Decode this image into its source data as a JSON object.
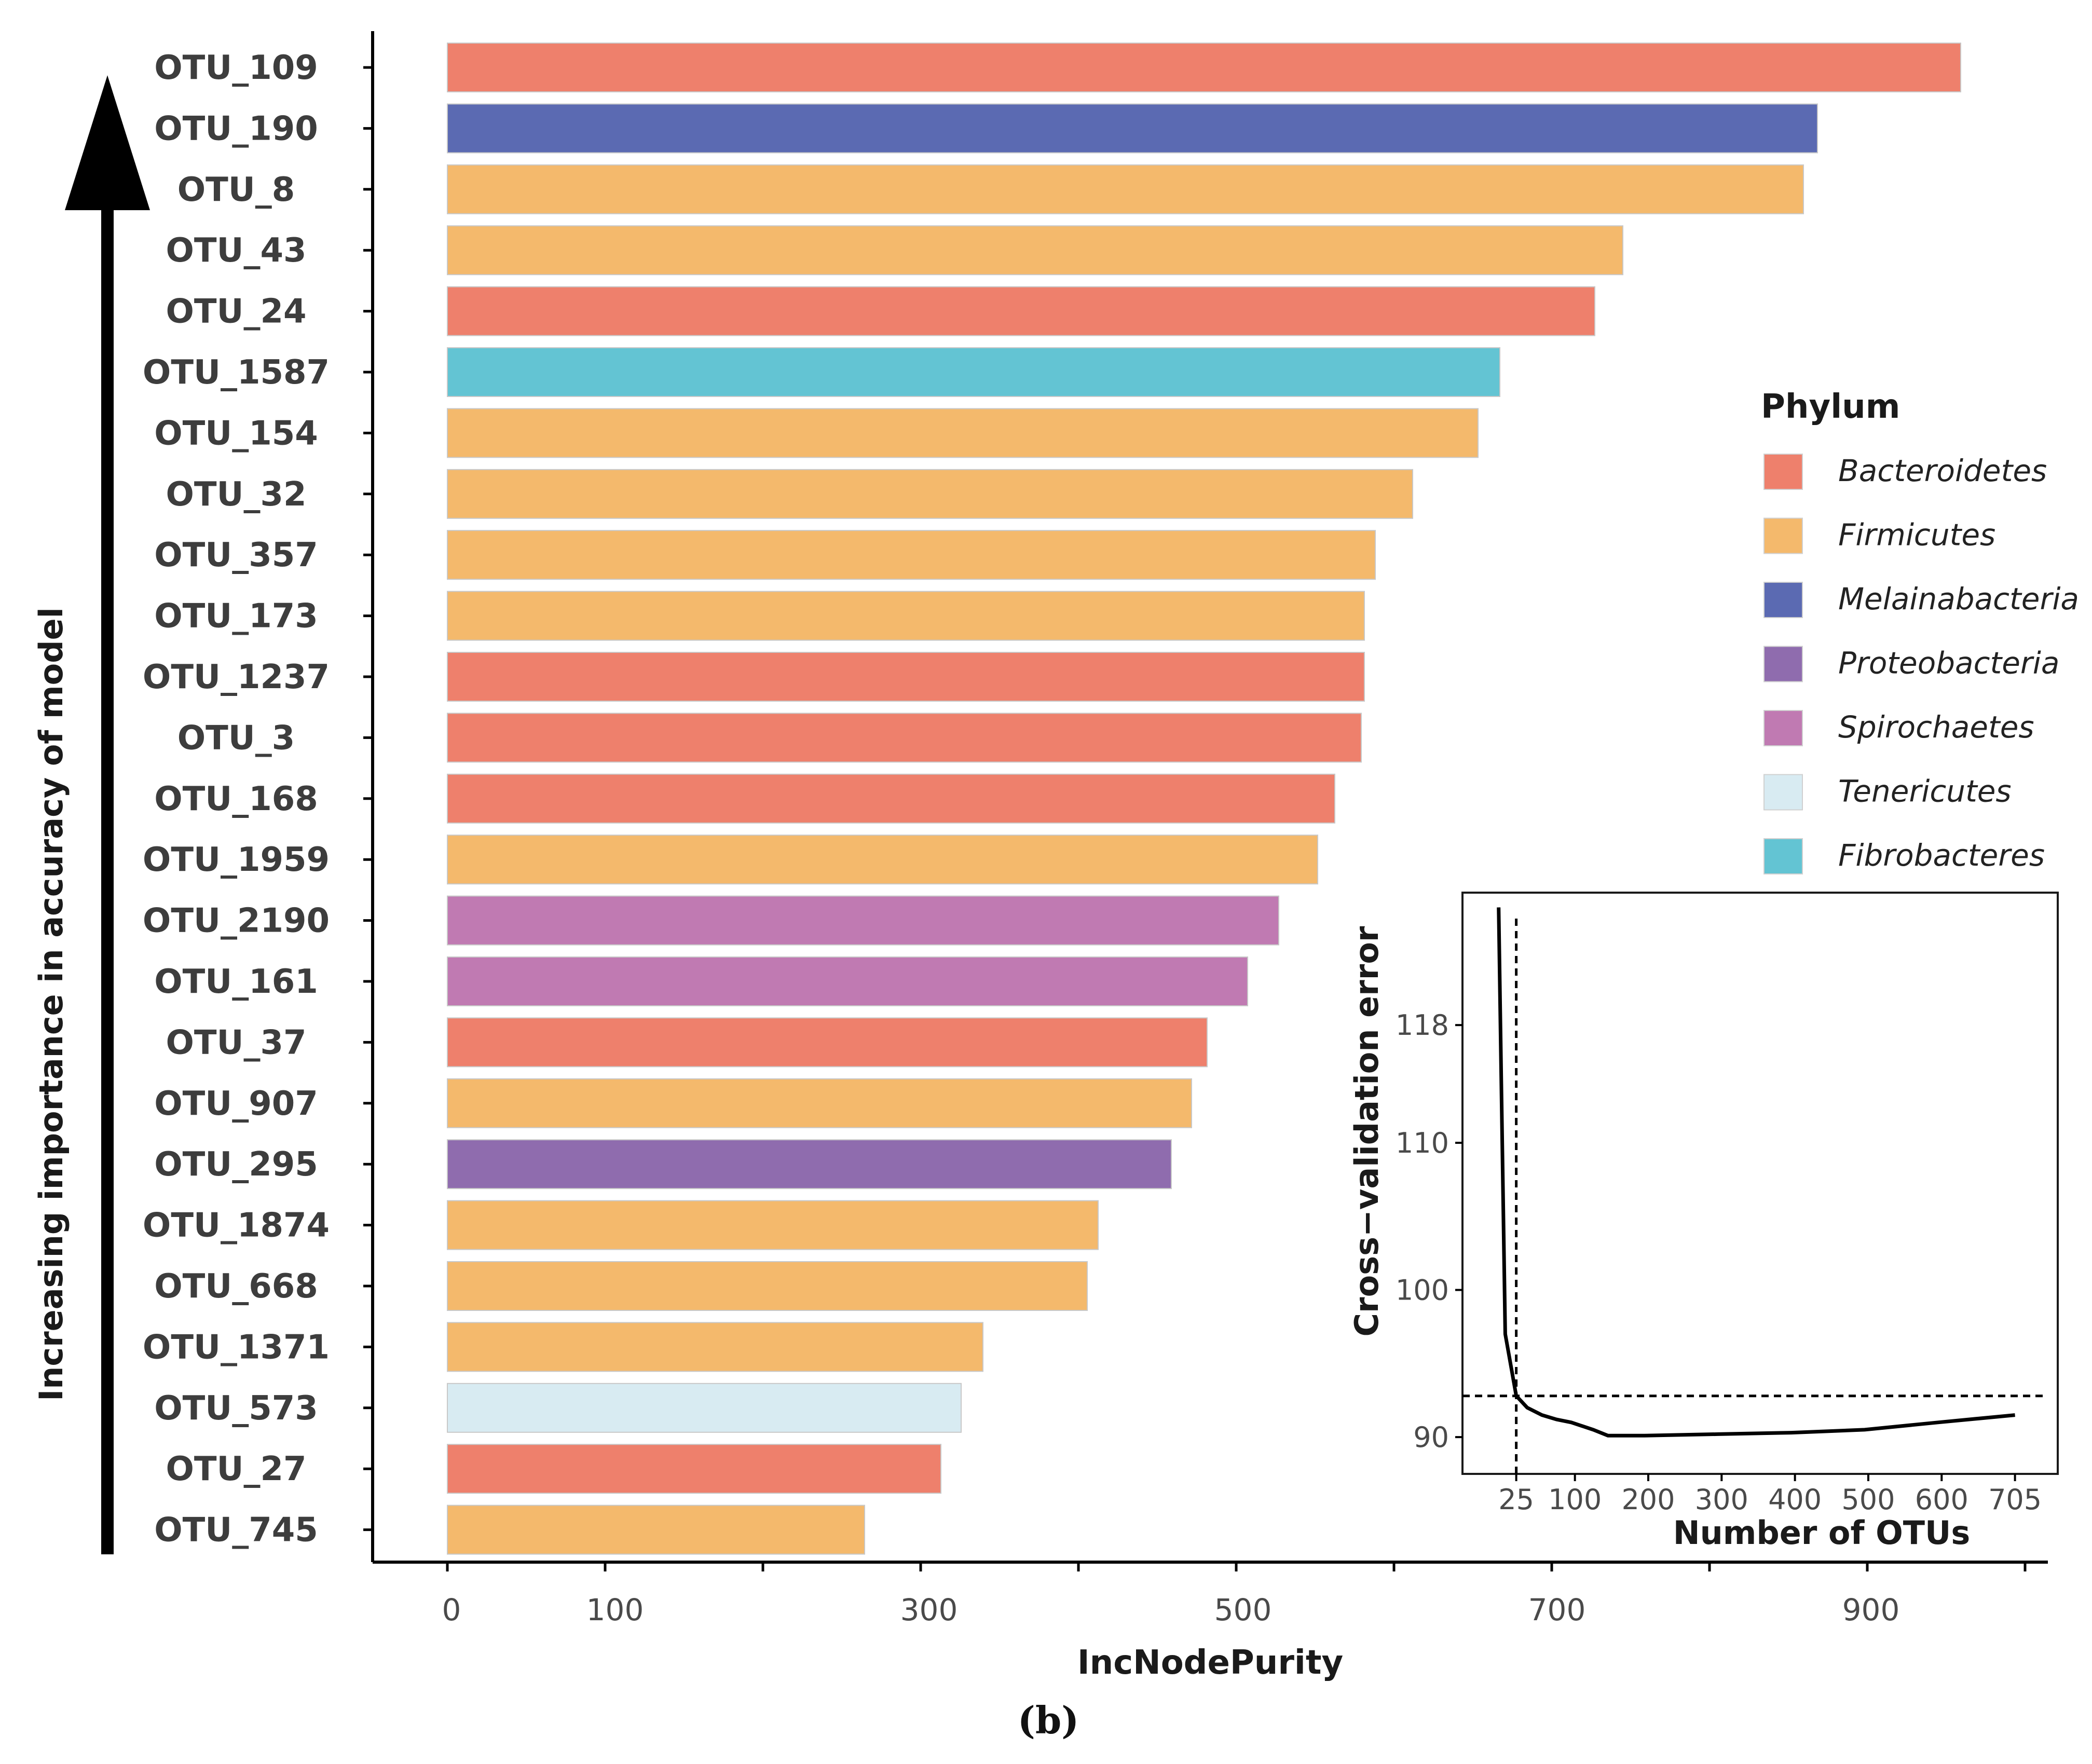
{
  "chart_data": {
    "type": "bar",
    "orientation": "horizontal",
    "xlabel": "IncNodePurity",
    "ylabel": "Increasing importance in accuracy of model",
    "x_tick_labels": [
      "0",
      "100",
      "300",
      "500",
      "700",
      "900"
    ],
    "xlim": [
      0,
      1000
    ],
    "caption": "(b)",
    "categories": [
      "OTU_109",
      "OTU_190",
      "OTU_8",
      "OTU_43",
      "OTU_24",
      "OTU_1587",
      "OTU_154",
      "OTU_32",
      "OTU_357",
      "OTU_173",
      "OTU_1237",
      "OTU_3",
      "OTU_168",
      "OTU_1959",
      "OTU_2190",
      "OTU_161",
      "OTU_37",
      "OTU_907",
      "OTU_295",
      "OTU_1874",
      "OTU_668",
      "OTU_1371",
      "OTU_573",
      "OTU_27",
      "OTU_745"
    ],
    "values": [
      972,
      880,
      871,
      755,
      737,
      676,
      662,
      620,
      596,
      589,
      589,
      587,
      570,
      559,
      534,
      514,
      488,
      478,
      465,
      418,
      411,
      344,
      330,
      317,
      268
    ],
    "phylum": [
      "Bacteroidetes",
      "Melainabacteria",
      "Firmicutes",
      "Firmicutes",
      "Bacteroidetes",
      "Fibrobacteres",
      "Firmicutes",
      "Firmicutes",
      "Firmicutes",
      "Firmicutes",
      "Bacteroidetes",
      "Bacteroidetes",
      "Bacteroidetes",
      "Firmicutes",
      "Spirochaetes",
      "Spirochaetes",
      "Bacteroidetes",
      "Firmicutes",
      "Proteobacteria",
      "Firmicutes",
      "Firmicutes",
      "Firmicutes",
      "Tenericutes",
      "Bacteroidetes",
      "Firmicutes"
    ],
    "legend": {
      "title": "Phylum",
      "position": "right",
      "items": [
        {
          "name": "Bacteroidetes",
          "color": "#ee806c"
        },
        {
          "name": "Firmicutes",
          "color": "#f4b96c"
        },
        {
          "name": "Melainabacteria",
          "color": "#5b6ab2"
        },
        {
          "name": "Proteobacteria",
          "color": "#8f6cae"
        },
        {
          "name": "Spirochaetes",
          "color": "#c07ab2"
        },
        {
          "name": "Tenericutes",
          "color": "#d8ebf2"
        },
        {
          "name": "Fibrobacteres",
          "color": "#63c4d3"
        }
      ]
    },
    "inset": {
      "type": "line",
      "xlabel": "Number of OTUs",
      "ylabel": "Cross−validation error",
      "x_tick_labels": [
        "25",
        "100",
        "200",
        "300",
        "400",
        "500",
        "600",
        "705"
      ],
      "y_ticks": [
        90,
        100,
        110,
        118
      ],
      "y_tick_labels": [
        "90",
        "100",
        "110",
        "118"
      ],
      "xlim": [
        -20,
        735
      ],
      "ylim": [
        87.5,
        127
      ],
      "cutoff_x": 25,
      "cutoff_y": 92.8,
      "x": [
        1,
        5,
        10,
        25,
        40,
        60,
        80,
        100,
        130,
        150,
        200,
        300,
        400,
        500,
        600,
        705
      ],
      "y": [
        126,
        113,
        97,
        92.8,
        92,
        91.5,
        91.2,
        91,
        90.5,
        90.1,
        90.1,
        90.2,
        90.3,
        90.5,
        91,
        91.5
      ]
    }
  }
}
